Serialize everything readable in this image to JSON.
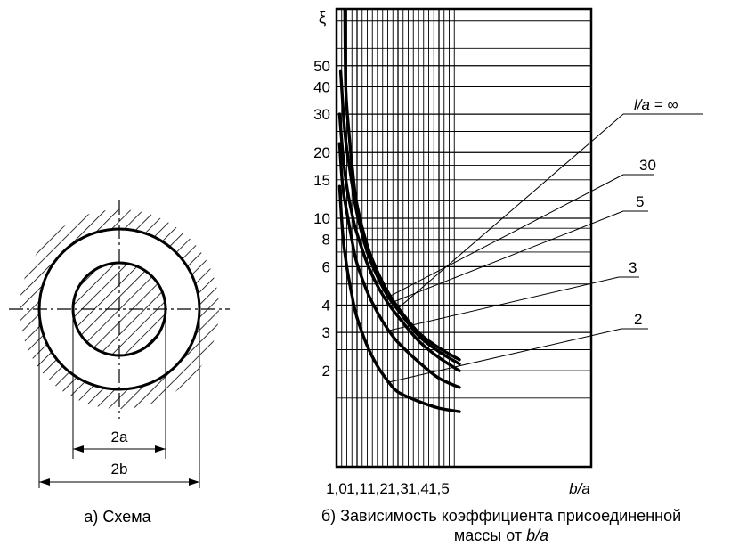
{
  "scheme": {
    "dim_inner": "2a",
    "dim_outer": "2b",
    "caption": "а) Схема"
  },
  "chart_data": {
    "type": "line",
    "yaxis_symbol": "ξ",
    "xlabel": "b/a",
    "xlim": [
      1.0,
      1.6
    ],
    "ylim": [
      1.2,
      100
    ],
    "y_scale": "log",
    "grid": true,
    "x_ticks": [
      "1,0",
      "1,1",
      "1,2",
      "1,3",
      "1,4",
      "1,5"
    ],
    "y_ticks": [
      "50",
      "40",
      "30",
      "20",
      "15",
      "10",
      "8",
      "6",
      "4",
      "3",
      "2"
    ],
    "series": [
      {
        "name": "l/a = ∞",
        "x": [
          1.045,
          1.06,
          1.08,
          1.1,
          1.15,
          1.2,
          1.25,
          1.3,
          1.4,
          1.5,
          1.6
        ],
        "values": [
          40,
          25,
          16,
          11.5,
          7.5,
          5.7,
          4.6,
          3.9,
          3.0,
          2.55,
          2.25
        ]
      },
      {
        "name": "30",
        "x": [
          1.02,
          1.04,
          1.06,
          1.08,
          1.1,
          1.15,
          1.2,
          1.25,
          1.3,
          1.4,
          1.5,
          1.6
        ],
        "values": [
          47,
          25,
          18,
          13.5,
          10.5,
          7.0,
          5.4,
          4.4,
          3.8,
          2.9,
          2.45,
          2.15
        ]
      },
      {
        "name": "5",
        "x": [
          1.015,
          1.03,
          1.05,
          1.08,
          1.1,
          1.15,
          1.2,
          1.25,
          1.3,
          1.4,
          1.5,
          1.6
        ],
        "values": [
          30,
          20,
          14,
          10,
          8.5,
          6.2,
          4.9,
          4.1,
          3.55,
          2.75,
          2.3,
          2.0
        ]
      },
      {
        "name": "3",
        "x": [
          1.015,
          1.03,
          1.06,
          1.08,
          1.1,
          1.15,
          1.2,
          1.25,
          1.3,
          1.4,
          1.5,
          1.6
        ],
        "values": [
          22,
          14,
          9.5,
          7.5,
          6.2,
          4.6,
          3.7,
          3.1,
          2.7,
          2.2,
          1.85,
          1.68
        ]
      },
      {
        "name": "2",
        "x": [
          1.015,
          1.03,
          1.05,
          1.08,
          1.1,
          1.15,
          1.2,
          1.25,
          1.3,
          1.4,
          1.5,
          1.6
        ],
        "values": [
          14,
          8.5,
          6,
          4.2,
          3.5,
          2.6,
          2.1,
          1.8,
          1.6,
          1.45,
          1.35,
          1.3
        ]
      }
    ],
    "caption_line1": "б) Зависимость коэффициента присоединенной",
    "caption_line2": "массы от ",
    "caption_line2_italic": "b/a"
  }
}
